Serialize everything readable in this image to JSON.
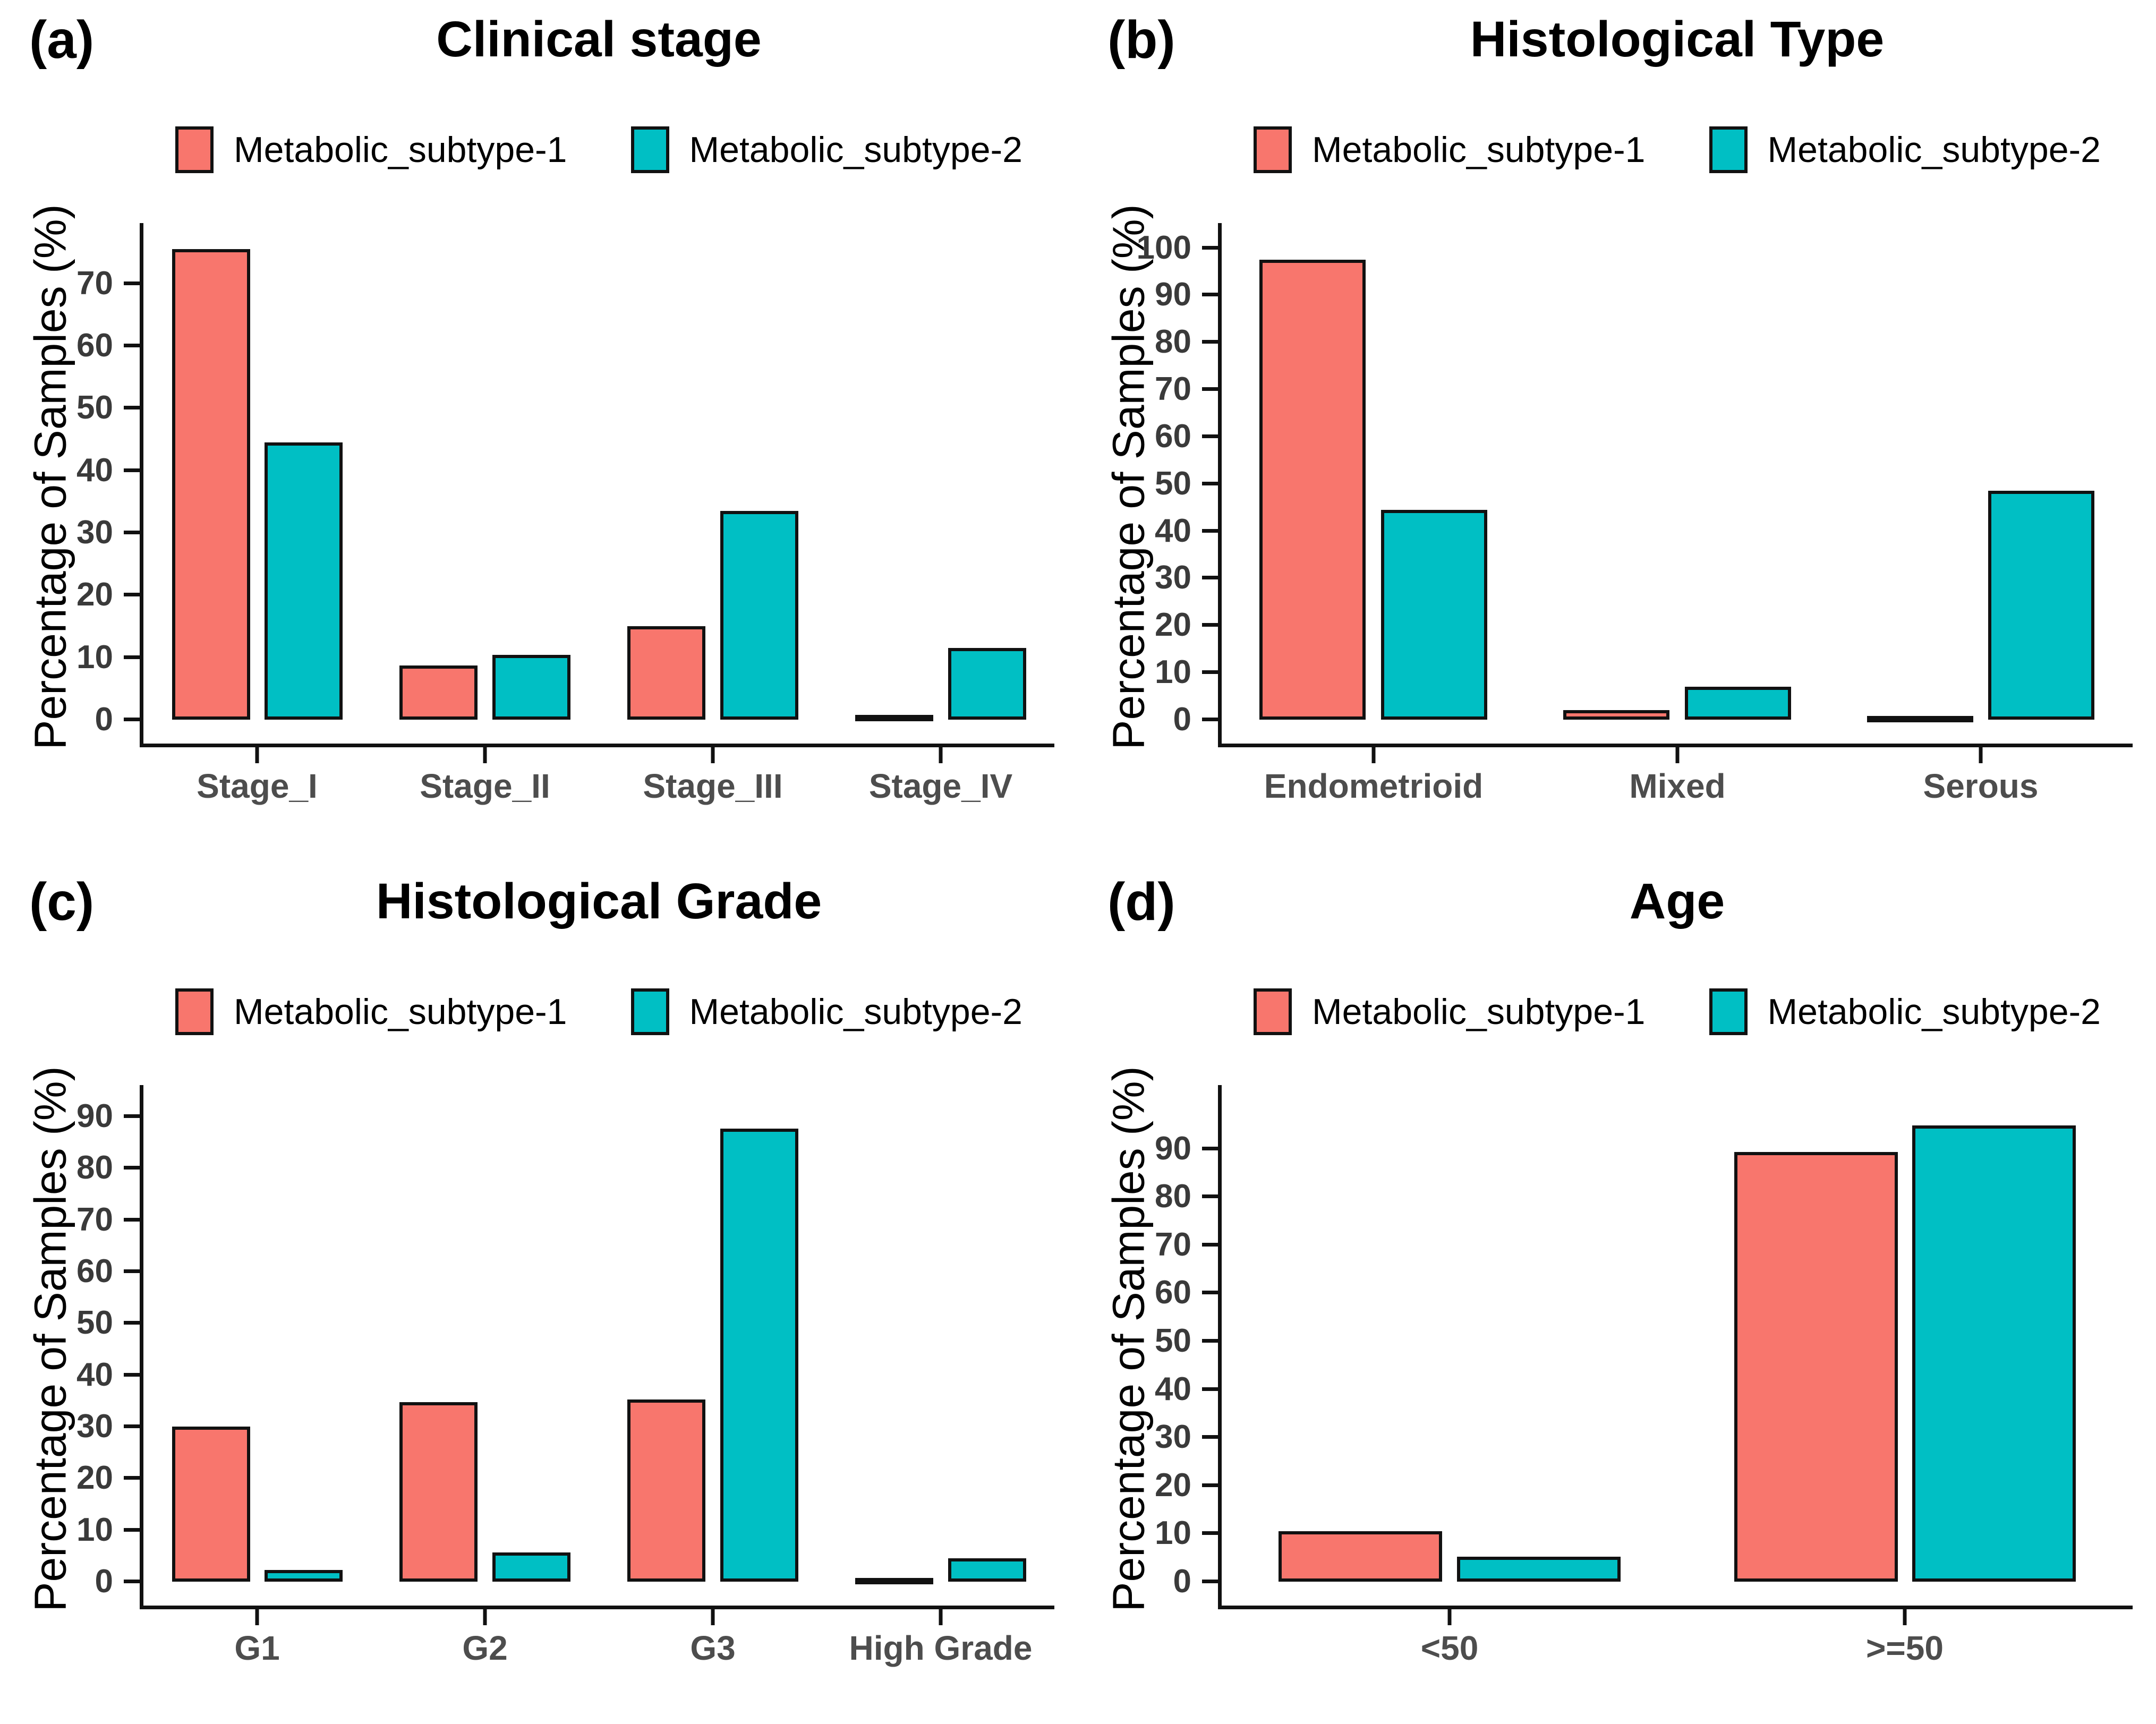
{
  "figure": {
    "background": "#ffffff",
    "ylabel": "Percentage of Samples (%)",
    "legend": [
      "Metabolic_subtype-1",
      "Metabolic_subtype-2"
    ],
    "colors": {
      "subtype1": "#F8766D",
      "subtype2": "#00BFC4",
      "border": "#111111"
    }
  },
  "chart_data": [
    {
      "panel_label": "(a)",
      "type": "bar",
      "title": "Clinical stage",
      "ylabel": "Percentage of Samples (%)",
      "legend_position": "top",
      "grid": false,
      "categories": [
        "Stage_I",
        "Stage_II",
        "Stage_III",
        "Stage_IV"
      ],
      "yticks": [
        0,
        10,
        20,
        30,
        40,
        50,
        60,
        70
      ],
      "ylim": [
        0,
        78
      ],
      "series": [
        {
          "name": "Metabolic_subtype-1",
          "color": "#F8766D",
          "values": [
            75.5,
            8.7,
            15.0,
            0.8
          ]
        },
        {
          "name": "Metabolic_subtype-2",
          "color": "#00BFC4",
          "values": [
            44.5,
            10.4,
            33.5,
            11.5
          ]
        }
      ]
    },
    {
      "panel_label": "(b)",
      "type": "bar",
      "title": "Histological Type",
      "ylabel": "Percentage of Samples (%)",
      "legend_position": "top",
      "grid": false,
      "categories": [
        "Endometrioid",
        "Mixed",
        "Serous"
      ],
      "yticks": [
        0,
        10,
        20,
        30,
        40,
        50,
        60,
        70,
        80,
        90,
        100
      ],
      "ylim": [
        0,
        103
      ],
      "series": [
        {
          "name": "Metabolic_subtype-1",
          "color": "#F8766D",
          "values": [
            97.5,
            2.0,
            0.5
          ]
        },
        {
          "name": "Metabolic_subtype-2",
          "color": "#00BFC4",
          "values": [
            44.5,
            7.0,
            48.5
          ]
        }
      ]
    },
    {
      "panel_label": "(c)",
      "type": "bar",
      "title": "Histological Grade",
      "ylabel": "Percentage of Samples (%)",
      "legend_position": "top",
      "grid": false,
      "categories": [
        "G1",
        "G2",
        "G3",
        "High Grade"
      ],
      "yticks": [
        0,
        10,
        20,
        30,
        40,
        50,
        60,
        70,
        80,
        90
      ],
      "ylim": [
        0,
        94
      ],
      "series": [
        {
          "name": "Metabolic_subtype-1",
          "color": "#F8766D",
          "values": [
            30.0,
            34.7,
            35.2,
            0.2
          ]
        },
        {
          "name": "Metabolic_subtype-2",
          "color": "#00BFC4",
          "values": [
            2.3,
            5.6,
            87.6,
            4.5
          ]
        }
      ]
    },
    {
      "panel_label": "(d)",
      "type": "bar",
      "title": "Age",
      "ylabel": "Percentage of Samples (%)",
      "legend_position": "top",
      "grid": false,
      "categories": [
        "<50",
        ">=50"
      ],
      "yticks": [
        0,
        10,
        20,
        30,
        40,
        50,
        60,
        70,
        80,
        90
      ],
      "ylim": [
        0,
        101
      ],
      "series": [
        {
          "name": "Metabolic_subtype-1",
          "color": "#F8766D",
          "values": [
            10.5,
            89.3
          ]
        },
        {
          "name": "Metabolic_subtype-2",
          "color": "#00BFC4",
          "values": [
            5.2,
            94.8
          ]
        }
      ]
    }
  ]
}
